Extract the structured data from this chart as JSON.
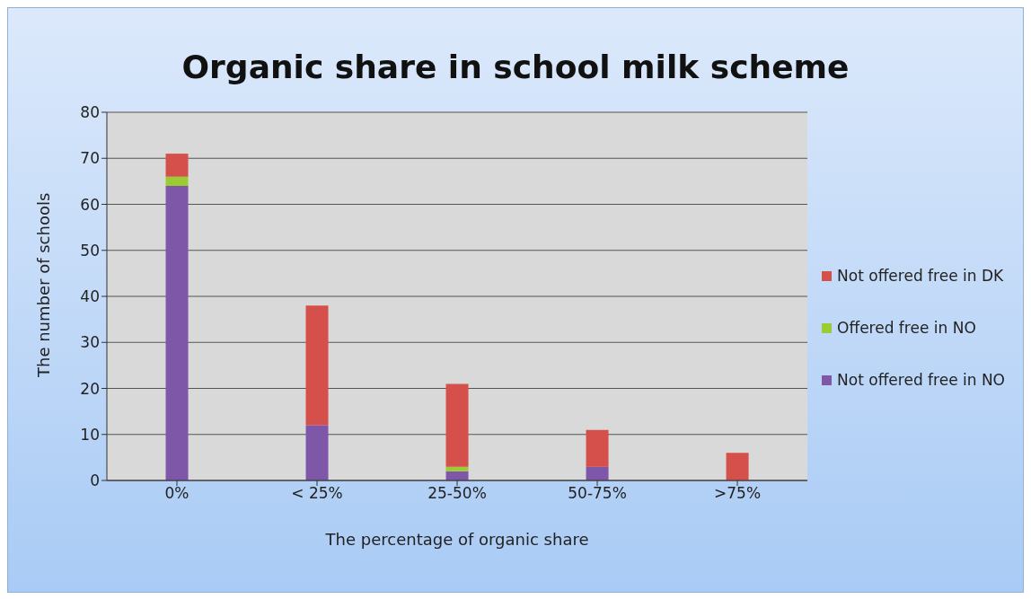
{
  "chart_data": {
    "type": "bar",
    "title": "Organic share in school milk scheme",
    "xlabel": "The percentage of organic share",
    "ylabel": "The number of schools",
    "categories": [
      "0%",
      "< 25%",
      "25-50%",
      "50-75%",
      ">75%"
    ],
    "series": [
      {
        "name": "Not offered free in NO",
        "color": "#7e57a8",
        "values": [
          64,
          12,
          2,
          3,
          0
        ]
      },
      {
        "name": "Offered free in NO",
        "color": "#9acd32",
        "values": [
          2,
          0,
          1,
          0,
          0
        ]
      },
      {
        "name": "Not offered free in DK",
        "color": "#d5504a",
        "values": [
          5,
          26,
          18,
          8,
          6
        ]
      }
    ],
    "stacked": true,
    "ylim": [
      0,
      80
    ],
    "yticks": [
      0,
      10,
      20,
      30,
      40,
      50,
      60,
      70,
      80
    ],
    "grid": "y",
    "legend": "right"
  }
}
